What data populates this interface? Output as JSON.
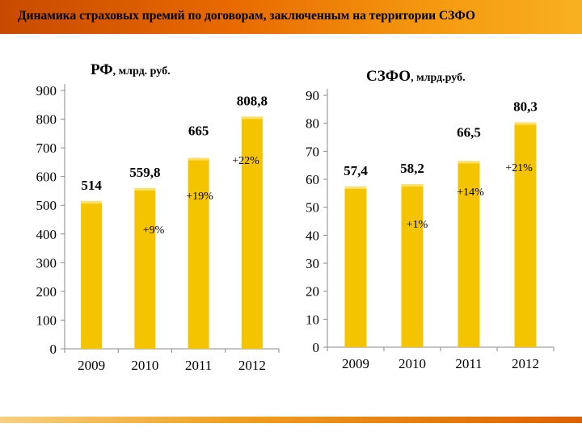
{
  "header": {
    "title": "Динамика страховых премий по договорам, заключенным на территории СЗФО"
  },
  "colors": {
    "header_start": "#c84a00",
    "header_end": "#f8b020",
    "bar": "#f5c400",
    "bar_top": "#ffe066"
  },
  "chart_data": [
    {
      "type": "bar",
      "title": "РФ",
      "title_suffix": ", млрд. руб.",
      "categories": [
        "2009",
        "2010",
        "2011",
        "2012"
      ],
      "values": [
        514,
        559.8,
        665,
        808.8
      ],
      "value_labels": [
        "514",
        "559,8",
        "665",
        "808,8"
      ],
      "ylim": [
        0,
        900
      ],
      "yticks": [
        0,
        100,
        200,
        300,
        400,
        500,
        600,
        700,
        800,
        900
      ],
      "growth_labels": [
        "+9%",
        "+19%",
        "+22%"
      ],
      "grid": false
    },
    {
      "type": "bar",
      "title": "СЗФО",
      "title_suffix": ", млрд.руб.",
      "categories": [
        "2009",
        "2010",
        "2011",
        "2012"
      ],
      "values": [
        57.4,
        58.2,
        66.5,
        80.3
      ],
      "value_labels": [
        "57,4",
        "58,2",
        "66,5",
        "80,3"
      ],
      "ylim": [
        0,
        90
      ],
      "yticks": [
        0,
        10,
        20,
        30,
        40,
        50,
        60,
        70,
        80,
        90
      ],
      "growth_labels": [
        "+1%",
        "+14%",
        "+21%"
      ],
      "grid": false
    }
  ]
}
